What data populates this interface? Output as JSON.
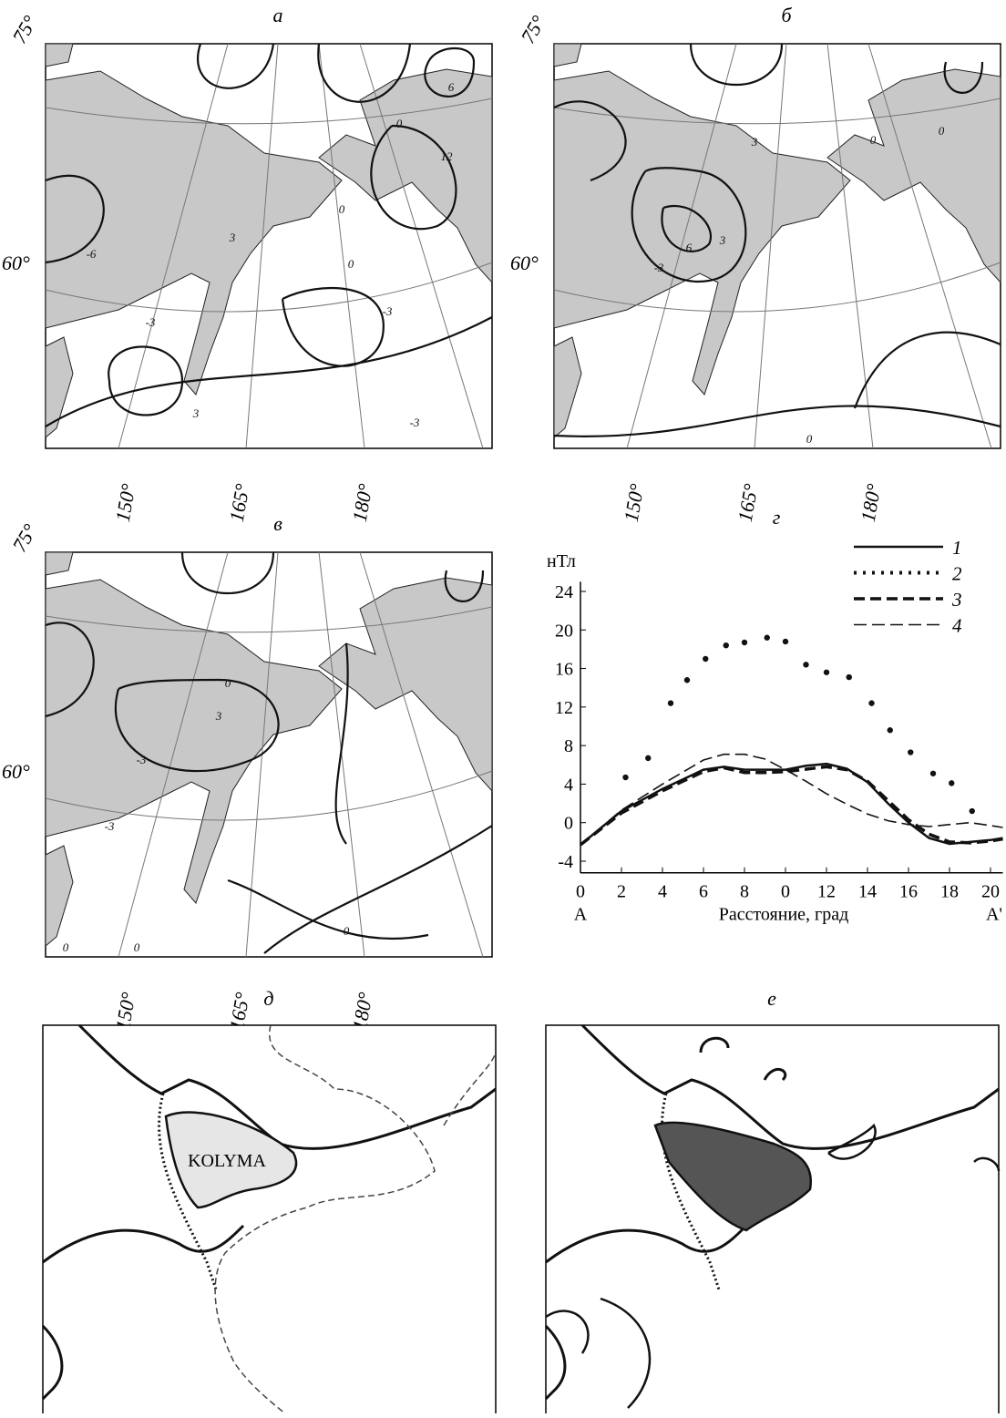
{
  "panels": [
    {
      "letter": "а",
      "lat_labels": [
        "75°",
        "60°"
      ],
      "lon_labels": [
        "150°",
        "165°",
        "180°"
      ],
      "contour_labels": [
        "0",
        "12",
        "6",
        "0",
        "3",
        "-3",
        "-6",
        "-3",
        "0",
        "3",
        "-3"
      ]
    },
    {
      "letter": "б",
      "lat_labels": [
        "75°",
        "60°"
      ],
      "lon_labels": [
        "150°",
        "165°",
        "180°"
      ],
      "contour_labels": [
        "3",
        "0",
        "3",
        "6",
        "0",
        "-3",
        "0"
      ]
    },
    {
      "letter": "в",
      "lat_labels": [
        "75°",
        "60°"
      ],
      "lon_labels": [
        "150°",
        "165°",
        "180°"
      ],
      "contour_labels": [
        "-3",
        "0",
        "3",
        "-3",
        "0",
        "0",
        "0"
      ]
    },
    {
      "letter": "д",
      "region_label": "KOLYMA"
    },
    {
      "letter": "е"
    }
  ],
  "chart_data": {
    "type": "line",
    "letter": "г",
    "y_unit": "нТл",
    "x_label": "Расстояние, град",
    "x_end_labels": [
      "A",
      "A'"
    ],
    "xlim": [
      0,
      20.6
    ],
    "ylim": [
      -5.2,
      25
    ],
    "xticks": [
      0,
      2,
      4,
      6,
      8,
      {
        "value": 10,
        "label": "0"
      },
      12,
      14,
      16,
      18,
      20
    ],
    "yticks": [
      -4,
      0,
      4,
      8,
      12,
      16,
      20,
      24
    ],
    "series": [
      {
        "name": "1",
        "color": "#111111",
        "style": "solid",
        "x": [
          0,
          2,
          4,
          6,
          7,
          8,
          10,
          11,
          12,
          13,
          14,
          15,
          16,
          17,
          18,
          19,
          20,
          20.6
        ],
        "values": [
          -2.3,
          1.2,
          3.5,
          5.5,
          5.8,
          5.5,
          5.5,
          5.9,
          6.1,
          5.6,
          4.2,
          2,
          0,
          -1.6,
          -2.2,
          -2,
          -1.8,
          -1.6
        ]
      },
      {
        "name": "2",
        "color": "#111111",
        "style": "dotted",
        "x": [
          2.2,
          3.3,
          4.4,
          5.2,
          6.1,
          7.1,
          8,
          9.1,
          10,
          11,
          12,
          13.1,
          14.2,
          15.1,
          16.1,
          17.2,
          18.1,
          19.1
        ],
        "values": [
          4.7,
          6.7,
          12.4,
          14.8,
          17,
          18.4,
          18.7,
          19.2,
          18.8,
          16.4,
          15.6,
          15.1,
          12.4,
          9.6,
          7.3,
          5.1,
          4.1,
          1.2
        ]
      },
      {
        "name": "3",
        "color": "#111111",
        "style": "dashed-thick",
        "x": [
          0,
          2,
          4,
          6,
          7,
          8,
          9,
          10,
          12,
          13,
          14,
          15,
          16,
          17,
          18,
          19,
          20,
          20.6
        ],
        "values": [
          -2.3,
          1,
          3.3,
          5.3,
          5.7,
          5.2,
          5.2,
          5.3,
          5.8,
          5.5,
          4.3,
          2.3,
          0.3,
          -1.2,
          -2,
          -2.1,
          -1.9,
          -1.7
        ]
      },
      {
        "name": "4",
        "color": "#111111",
        "style": "dashed-thin",
        "x": [
          0,
          2,
          4,
          6,
          7,
          8,
          9,
          10,
          11,
          12,
          13,
          14,
          15,
          16,
          17,
          18,
          19,
          20,
          20.6
        ],
        "values": [
          -2.3,
          1.3,
          4,
          6.5,
          7.1,
          7.1,
          6.6,
          5.5,
          4.3,
          3,
          1.9,
          0.9,
          0.2,
          -0.2,
          -0.4,
          -0.2,
          0,
          -0.3,
          -0.5
        ]
      }
    ]
  }
}
